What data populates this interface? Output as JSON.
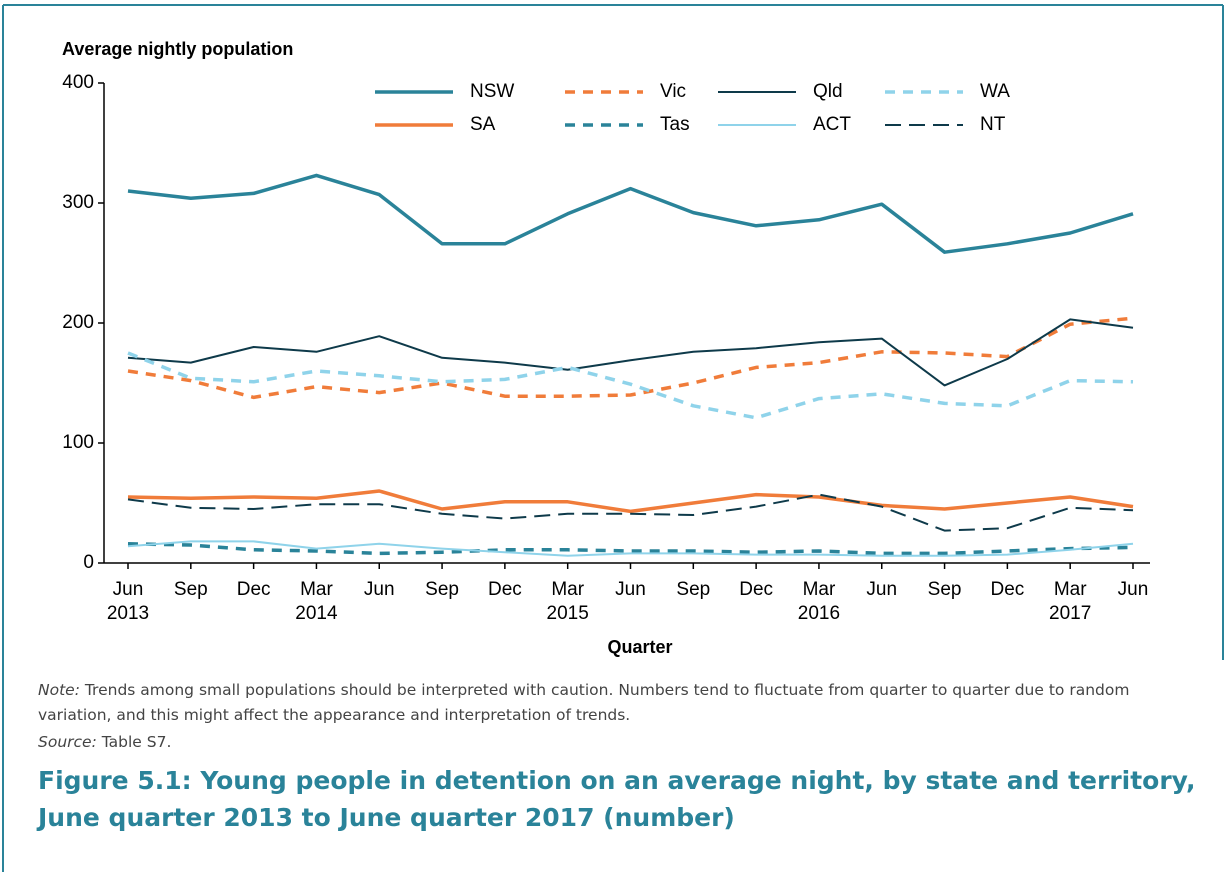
{
  "chart_data": {
    "type": "line",
    "y_label": "Average nightly population",
    "x_label": "Quarter",
    "categories": [
      "Jun 2013",
      "Sep",
      "Dec",
      "Mar 2014",
      "Jun",
      "Sep",
      "Dec",
      "Mar 2015",
      "Jun",
      "Sep",
      "Dec",
      "Mar 2016",
      "Jun",
      "Sep",
      "Dec",
      "Mar 2017",
      "Jun"
    ],
    "ylim": [
      0,
      400
    ],
    "yticks": [
      0,
      100,
      200,
      300,
      400
    ],
    "series": [
      {
        "name": "NSW",
        "color": "#2a8399",
        "style": "solid",
        "values": [
          310,
          304,
          308,
          323,
          307,
          266,
          266,
          291,
          312,
          292,
          281,
          286,
          299,
          259,
          266,
          275,
          291
        ]
      },
      {
        "name": "Vic",
        "color": "#f07c3a",
        "style": "dashed",
        "values": [
          160,
          152,
          138,
          147,
          142,
          150,
          139,
          139,
          140,
          150,
          163,
          167,
          176,
          175,
          172,
          199,
          204
        ]
      },
      {
        "name": "Qld",
        "color": "#0e3a4a",
        "style": "thin",
        "values": [
          171,
          167,
          180,
          176,
          189,
          171,
          167,
          161,
          169,
          176,
          179,
          184,
          187,
          148,
          170,
          203,
          196
        ]
      },
      {
        "name": "WA",
        "color": "#8fd3ea",
        "style": "dashed",
        "values": [
          175,
          154,
          151,
          160,
          156,
          151,
          153,
          163,
          149,
          131,
          121,
          137,
          141,
          133,
          131,
          152,
          151
        ]
      },
      {
        "name": "SA",
        "color": "#f07c3a",
        "style": "solid",
        "values": [
          55,
          54,
          55,
          54,
          60,
          45,
          51,
          51,
          43,
          50,
          57,
          55,
          48,
          45,
          50,
          55,
          47
        ]
      },
      {
        "name": "Tas",
        "color": "#2a8399",
        "style": "dashed",
        "values": [
          16,
          15,
          11,
          10,
          8,
          9,
          11,
          11,
          10,
          10,
          9,
          10,
          8,
          8,
          10,
          12,
          13
        ]
      },
      {
        "name": "ACT",
        "color": "#8fd3ea",
        "style": "thin",
        "values": [
          14,
          18,
          18,
          12,
          16,
          12,
          9,
          6,
          8,
          8,
          7,
          7,
          6,
          6,
          7,
          11,
          16
        ]
      },
      {
        "name": "NT",
        "color": "#0e3a4a",
        "style": "longdash",
        "values": [
          53,
          46,
          45,
          49,
          49,
          41,
          37,
          41,
          41,
          40,
          47,
          57,
          47,
          27,
          29,
          46,
          44
        ]
      }
    ]
  },
  "note": {
    "label": "Note:",
    "text": "Trends among small populations should be interpreted with caution. Numbers tend to fluctuate from quarter to quarter due to random variation, and this might affect the appearance and interpretation of trends."
  },
  "source": {
    "label": "Source:",
    "text": "Table S7."
  },
  "caption": "Figure 5.1: Young people in detention on an average night, by state and territory, June quarter 2013 to June quarter 2017 (number)"
}
